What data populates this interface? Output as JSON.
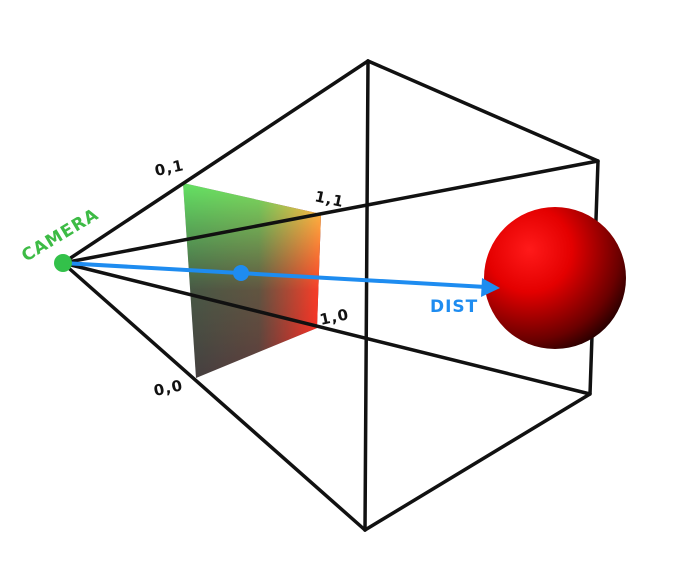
{
  "labels": {
    "camera": "CAMERA",
    "dist": "DIST",
    "corner_top_left": "0,1",
    "corner_top_right": "1,1",
    "corner_bottom_right": "1,0",
    "corner_bottom_left": "0,0"
  },
  "colors": {
    "frustum_edge": "#111111",
    "camera_dot": "#33c14a",
    "camera_text": "#3dbb45",
    "ray": "#1e8cf0",
    "ray_text": "#1e8cf0",
    "sphere_highlight": "#ff1a1a",
    "sphere_shadow": "#000000",
    "plane_green": "#2fd82f",
    "plane_yellow": "#e7e21a",
    "plane_red": "#ff2020",
    "plane_gray": "#404040"
  }
}
